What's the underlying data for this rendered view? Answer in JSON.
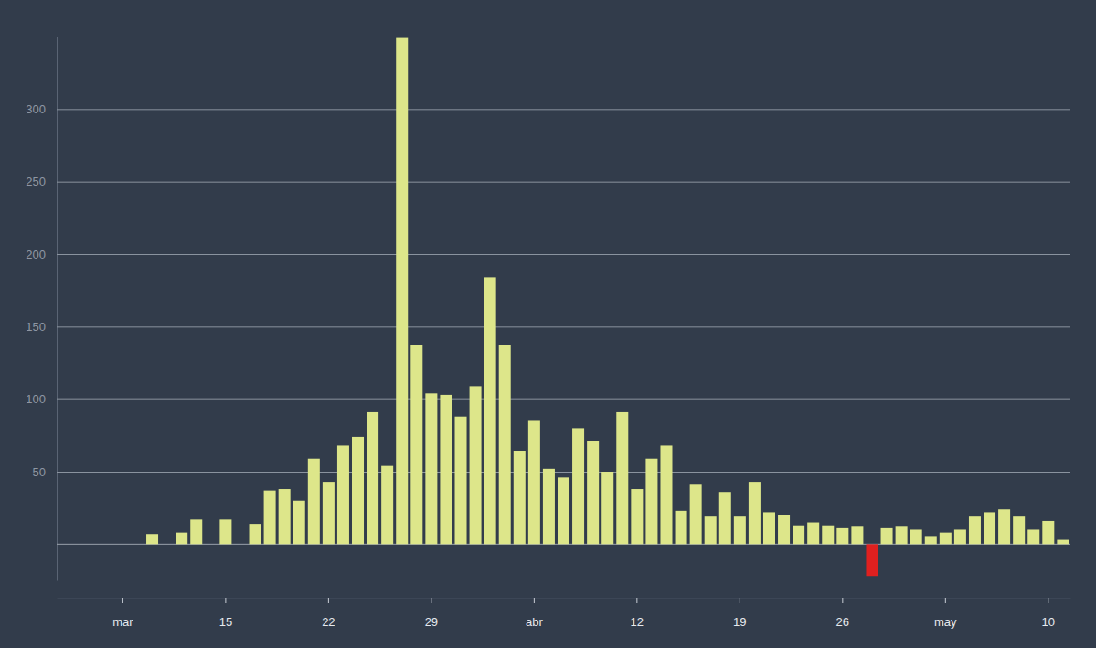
{
  "chart_data": {
    "type": "bar",
    "categories": [
      null,
      null,
      null,
      null,
      "mar",
      null,
      null,
      null,
      null,
      null,
      null,
      "15",
      null,
      null,
      null,
      null,
      null,
      null,
      "22",
      null,
      null,
      null,
      null,
      null,
      null,
      "29",
      null,
      null,
      null,
      null,
      null,
      null,
      "abr",
      null,
      null,
      null,
      null,
      null,
      null,
      "12",
      null,
      null,
      null,
      null,
      null,
      null,
      "19",
      null,
      null,
      null,
      null,
      null,
      null,
      "26",
      null,
      null,
      null,
      null,
      null,
      null,
      "may",
      null,
      null,
      null,
      null,
      null,
      null,
      "10",
      null
    ],
    "values": [
      0,
      0,
      0,
      0,
      0,
      0,
      7,
      0,
      8,
      17,
      0,
      17,
      0,
      14,
      37,
      38,
      30,
      59,
      43,
      68,
      74,
      91,
      54,
      349,
      137,
      104,
      103,
      88,
      109,
      184,
      137,
      64,
      85,
      52,
      46,
      80,
      71,
      50,
      91,
      38,
      59,
      68,
      23,
      41,
      19,
      36,
      19,
      43,
      22,
      20,
      13,
      15,
      13,
      11,
      12,
      -22,
      11,
      12,
      10,
      5,
      8,
      10,
      19,
      22,
      24,
      19,
      10,
      16,
      3
    ],
    "colors": [
      "#dde68a",
      "#dde68a",
      "#dde68a",
      "#dde68a",
      "#dde68a",
      "#dde68a",
      "#dde68a",
      "#dde68a",
      "#dde68a",
      "#dde68a",
      "#dde68a",
      "#dde68a",
      "#dde68a",
      "#dde68a",
      "#dde68a",
      "#dde68a",
      "#dde68a",
      "#dde68a",
      "#dde68a",
      "#dde68a",
      "#dde68a",
      "#dde68a",
      "#dde68a",
      "#dde68a",
      "#dde68a",
      "#dde68a",
      "#dde68a",
      "#dde68a",
      "#dde68a",
      "#dde68a",
      "#dde68a",
      "#dde68a",
      "#dde68a",
      "#dde68a",
      "#dde68a",
      "#dde68a",
      "#dde68a",
      "#dde68a",
      "#dde68a",
      "#dde68a",
      "#dde68a",
      "#dde68a",
      "#dde68a",
      "#dde68a",
      "#dde68a",
      "#dde68a",
      "#dde68a",
      "#dde68a",
      "#dde68a",
      "#dde68a",
      "#dde68a",
      "#dde68a",
      "#dde68a",
      "#dde68a",
      "#dde68a",
      "#e0201f",
      "#dde68a",
      "#dde68a",
      "#dde68a",
      "#dde68a",
      "#dde68a",
      "#dde68a",
      "#dde68a",
      "#dde68a",
      "#dde68a",
      "#dde68a",
      "#dde68a",
      "#dde68a",
      "#dde68a"
    ],
    "ylim": [
      -25,
      350
    ],
    "yticks": [
      50,
      100,
      150,
      200,
      250,
      300
    ],
    "grid": true
  }
}
